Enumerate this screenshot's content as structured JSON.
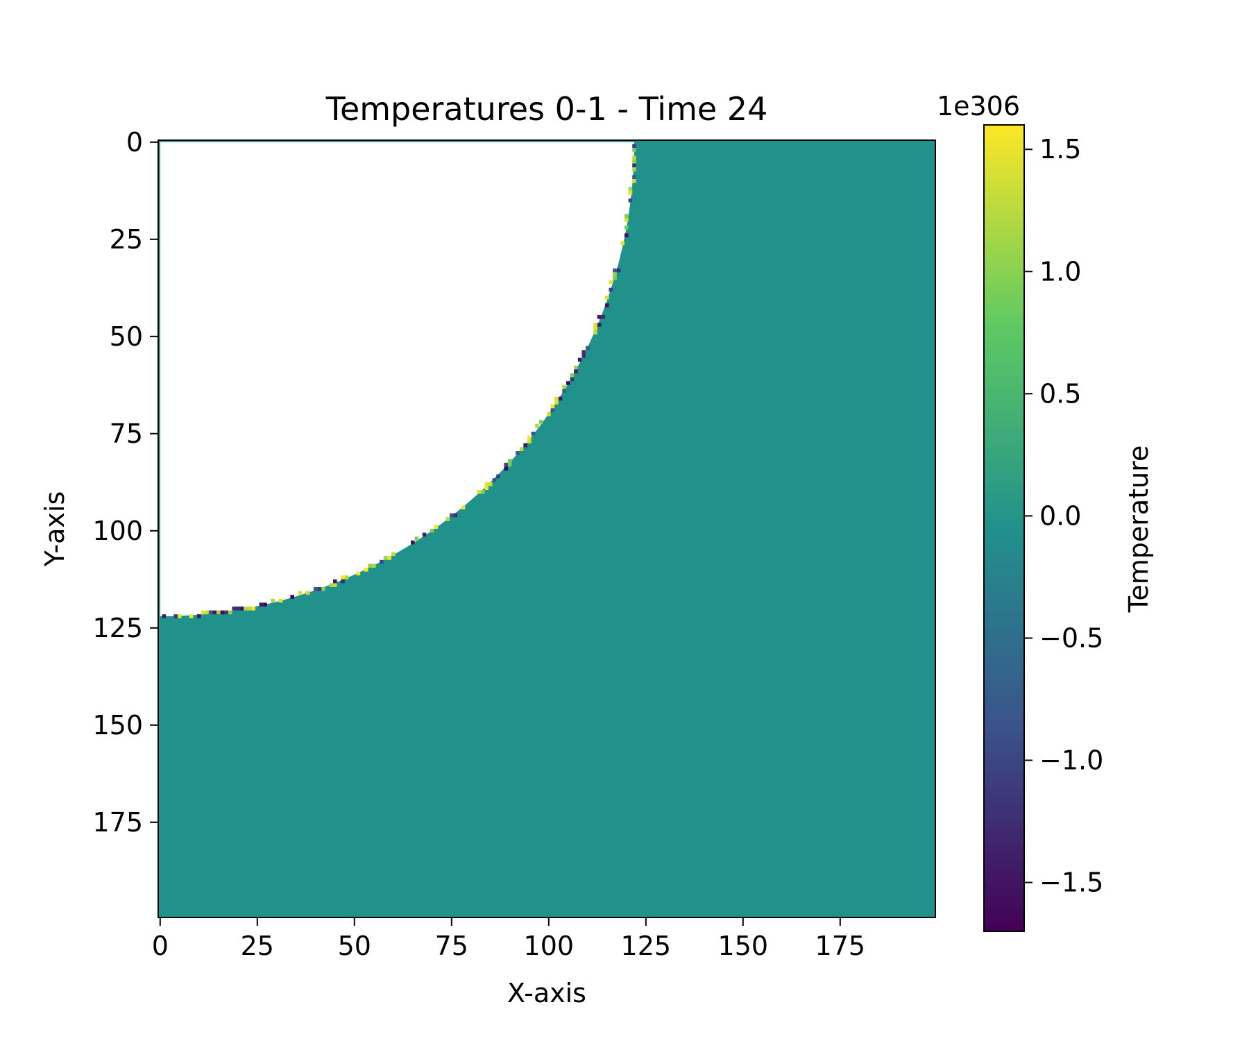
{
  "chart_data": {
    "type": "heatmap",
    "title": "Temperatures 0-1 - Time 24",
    "xlabel": "X-axis",
    "ylabel": "Y-axis",
    "xlim": [
      0,
      199
    ],
    "ylim": [
      199,
      0
    ],
    "x_ticks": [
      0,
      25,
      50,
      75,
      100,
      125,
      150,
      175
    ],
    "y_ticks": [
      0,
      25,
      50,
      75,
      100,
      125,
      150,
      175
    ],
    "x_tick_labels": [
      "0",
      "25",
      "50",
      "75",
      "100",
      "125",
      "150",
      "175"
    ],
    "y_tick_labels": [
      "0",
      "25",
      "50",
      "75",
      "100",
      "125",
      "150",
      "175"
    ],
    "grid": false,
    "colormap": "viridis",
    "field": {
      "background_value": 0.0,
      "nan_region": {
        "shape": "quarter-ellipse",
        "anchor": [
          0,
          0
        ],
        "x_extent": 122,
        "y_extent": 122
      },
      "boundary": "noisy values in [-1.7e306, 1.6e306] along the edge of the missing region"
    },
    "colorbar": {
      "label": "Temperature",
      "multiplier": "1e306",
      "vmin": -1.7,
      "vmax": 1.6,
      "ticks": [
        1.5,
        1.0,
        0.5,
        0.0,
        -0.5,
        -1.0,
        -1.5
      ],
      "tick_labels": [
        "1.5",
        "1.0",
        "0.5",
        "0.0",
        "−0.5",
        "−1.0",
        "−1.5"
      ]
    },
    "colors": {
      "background_field": "#21918c",
      "missing": "#ffffff",
      "viridis_stops": [
        "#440154",
        "#3b528b",
        "#21918c",
        "#5ec962",
        "#fde725"
      ]
    }
  }
}
